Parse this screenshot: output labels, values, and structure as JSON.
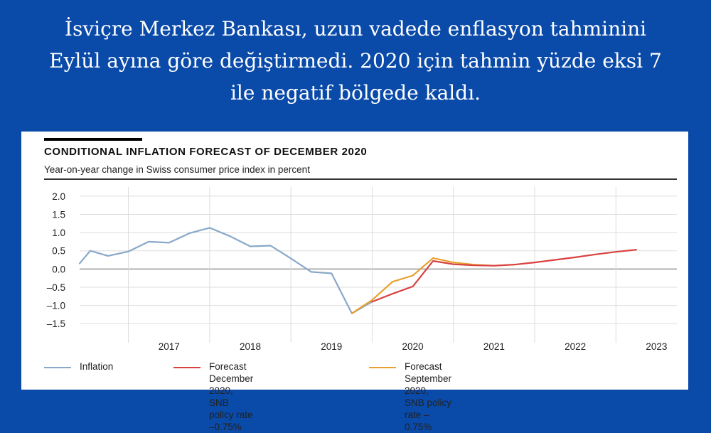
{
  "headline": {
    "line1": "İsviçre Merkez Bankası, uzun vadede enflasyon tahminini",
    "line2": "Eylül ayına göre değiştirmedi. 2020 için tahmin yüzde eksi 7",
    "line3": "ile negatif bölgede kaldı."
  },
  "chart_data": {
    "type": "line",
    "title": "CONDITIONAL INFLATION FORECAST OF DECEMBER 2020",
    "subtitle": "Year-on-year change in Swiss consumer price index in percent",
    "ylim": [
      -1.75,
      2.25
    ],
    "yticks": [
      "2.0",
      "1.5",
      "1.0",
      "0.5",
      "0.0",
      "–0.5",
      "–1.0",
      "–1.5"
    ],
    "ytick_values": [
      2.0,
      1.5,
      1.0,
      0.5,
      0.0,
      -0.5,
      -1.0,
      -1.5
    ],
    "xlim": [
      2016.4,
      2023.75
    ],
    "xticks": [
      "2017",
      "2018",
      "2019",
      "2020",
      "2021",
      "2022",
      "2023"
    ],
    "grid": true,
    "legend_position": "bottom",
    "series": [
      {
        "name": "Inflation",
        "color": "#88a8c8",
        "points": [
          [
            2016.4,
            0.15
          ],
          [
            2016.53,
            0.5
          ],
          [
            2016.75,
            0.36
          ],
          [
            2017.0,
            0.48
          ],
          [
            2017.25,
            0.75
          ],
          [
            2017.5,
            0.72
          ],
          [
            2017.75,
            0.98
          ],
          [
            2018.0,
            1.13
          ],
          [
            2018.25,
            0.9
          ],
          [
            2018.5,
            0.62
          ],
          [
            2018.75,
            0.64
          ],
          [
            2019.0,
            0.29
          ],
          [
            2019.25,
            -0.08
          ],
          [
            2019.5,
            -0.12
          ],
          [
            2019.75,
            -1.22
          ],
          [
            2020.0,
            -0.9
          ]
        ]
      },
      {
        "name": "Forecast December 2020,",
        "name_line2": "SNB policy rate –0.75%",
        "color": "#d94040",
        "points": [
          [
            2020.0,
            -0.9
          ],
          [
            2020.25,
            -0.68
          ],
          [
            2020.5,
            -0.48
          ],
          [
            2020.75,
            0.22
          ],
          [
            2021.0,
            0.13
          ],
          [
            2021.25,
            0.1
          ],
          [
            2021.5,
            0.09
          ],
          [
            2021.75,
            0.12
          ],
          [
            2022.0,
            0.18
          ],
          [
            2022.25,
            0.25
          ],
          [
            2022.5,
            0.32
          ],
          [
            2022.75,
            0.4
          ],
          [
            2023.0,
            0.47
          ],
          [
            2023.25,
            0.53
          ]
        ]
      },
      {
        "name": "Forecast September 2020,",
        "name_line2": "SNB policy rate –0.75%",
        "color": "#e8a030",
        "points": [
          [
            2019.75,
            -1.22
          ],
          [
            2020.0,
            -0.85
          ],
          [
            2020.25,
            -0.35
          ],
          [
            2020.5,
            -0.18
          ],
          [
            2020.75,
            0.3
          ],
          [
            2021.0,
            0.18
          ],
          [
            2021.25,
            0.12
          ],
          [
            2021.5,
            0.09
          ],
          [
            2021.75,
            0.12
          ]
        ]
      }
    ]
  }
}
